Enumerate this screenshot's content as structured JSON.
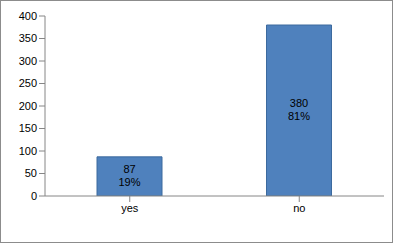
{
  "chart_data": {
    "type": "bar",
    "categories": [
      "yes",
      "no"
    ],
    "values": [
      87,
      380
    ],
    "value_labels": [
      "87\n19%",
      "380\n81%"
    ],
    "data_labels": true,
    "color": "#4f81bd",
    "ylim": [
      0,
      400
    ],
    "yticks": [
      0,
      50,
      100,
      150,
      200,
      250,
      300,
      350,
      400
    ],
    "grid": false
  }
}
